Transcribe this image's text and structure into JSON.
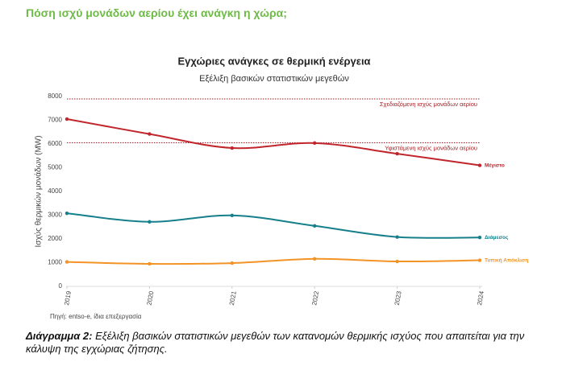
{
  "header": {
    "title": "Πόση ισχύ μονάδων αερίου έχει ανάγκη η χώρα;"
  },
  "chart_data": {
    "type": "line",
    "title": "Εγχώριες ανάγκες σε θερμική ενέργεια",
    "subtitle": "Εξέλιξη βασικών στατιστικών μεγεθών",
    "y_label": "Ισχύς θερμικών μονάδων (MW)",
    "x": [
      2019,
      2020,
      2021,
      2022,
      2023,
      2024
    ],
    "xlim": [
      2019,
      2024
    ],
    "xticks": [
      2019,
      2020,
      2021,
      2022,
      2023,
      2024
    ],
    "ylim": [
      0,
      8000
    ],
    "yticks": [
      0,
      1000,
      2000,
      3000,
      4000,
      5000,
      6000,
      7000,
      8000
    ],
    "grid": false,
    "series": [
      {
        "name": "Μέγιστο",
        "color": "#c0262c",
        "values": [
          7050,
          6420,
          5830,
          6040,
          5590,
          5100
        ]
      },
      {
        "name": "Διάμεσος",
        "color": "#167f8c",
        "values": [
          3080,
          2720,
          2990,
          2550,
          2080,
          2060
        ]
      },
      {
        "name": "Τυπική Απόκλιση",
        "color": "#f39325",
        "values": [
          1030,
          950,
          980,
          1160,
          1050,
          1100
        ]
      }
    ],
    "reference_lines": [
      {
        "value": 7900,
        "label": "Σχεδιαζόμενη ισχύς μονάδων αερίου",
        "color": "#a31d22"
      },
      {
        "value": 6050,
        "label": "Υφιστάμενη ισχύς μονάδων αερίου",
        "color": "#a31d22"
      }
    ],
    "source": "Πηγή: entso-e, ίδια επεξεργασία"
  },
  "caption": {
    "label": "Διάγραμμα 2:",
    "text": "Εξέλιξη βασικών στατιστικών μεγεθών των κατανομών θερμικής ισχύος που απαιτείται για την κάλυψη της εγχώριας ζήτησης."
  }
}
